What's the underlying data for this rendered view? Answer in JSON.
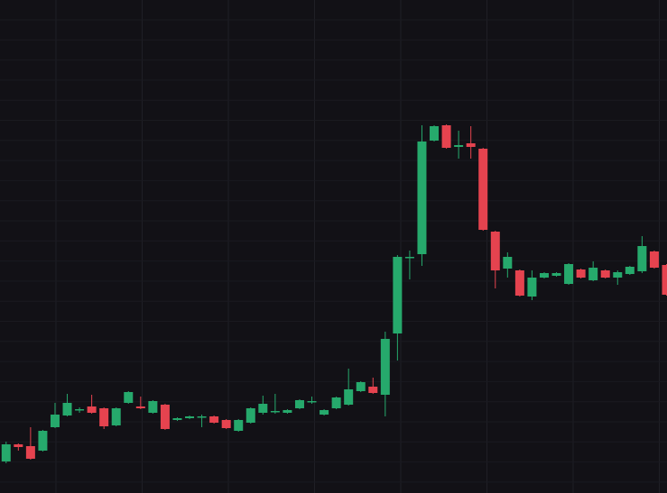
{
  "chart_data": {
    "type": "candlestick",
    "categories": [
      null,
      null,
      null,
      null,
      null,
      null,
      null,
      null,
      null,
      null,
      null,
      null,
      null,
      null,
      null,
      null,
      null,
      null,
      null,
      null,
      null,
      null,
      null,
      null,
      null,
      null,
      null,
      null,
      null,
      null,
      null,
      null,
      null,
      null,
      null,
      null,
      null,
      null,
      null,
      null,
      null,
      null,
      null,
      null,
      null,
      null,
      null,
      null,
      null,
      null,
      null,
      null,
      null,
      null,
      null
    ],
    "open": [
      35,
      54,
      52,
      47,
      73,
      86,
      92,
      96,
      94,
      75,
      100,
      96,
      89,
      98,
      81,
      83,
      84,
      85,
      81,
      69,
      78,
      89,
      90,
      89,
      94,
      101,
      87,
      94,
      98,
      113,
      118,
      109,
      177,
      261,
      265,
      391,
      408,
      384,
      388,
      382,
      290,
      249,
      247,
      218,
      239,
      241,
      232,
      248,
      236,
      247,
      239,
      243,
      246,
      268,
      253
    ],
    "high": [
      57,
      55,
      73,
      70,
      100,
      110,
      95,
      109,
      95,
      95,
      113,
      107,
      103,
      99,
      84,
      86,
      87,
      86,
      82,
      82,
      95,
      108,
      110,
      93,
      104,
      107,
      93,
      107,
      138,
      124,
      128,
      179,
      264,
      269,
      408,
      408,
      409,
      402,
      407,
      383,
      291,
      267,
      248,
      247,
      245,
      245,
      255,
      249,
      257,
      248,
      247,
      252,
      285,
      269,
      254
    ],
    "low": [
      33,
      47,
      37,
      46,
      72,
      85,
      89,
      88,
      71,
      74,
      99,
      93,
      88,
      70,
      80,
      82,
      73,
      77,
      71,
      68,
      77,
      87,
      88,
      88,
      93,
      99,
      86,
      93,
      97,
      112,
      110,
      85,
      147,
      237,
      252,
      390,
      382,
      371,
      371,
      291,
      227,
      239,
      218,
      214,
      238,
      240,
      231,
      238,
      235,
      238,
      231,
      242,
      244,
      249,
      219
    ],
    "close": [
      54,
      51,
      38,
      69,
      87,
      100,
      93,
      89,
      74,
      94,
      112,
      94,
      102,
      71,
      83,
      85,
      85,
      78,
      72,
      81,
      94,
      99,
      91,
      92,
      103,
      102,
      92,
      106,
      115,
      123,
      111,
      171,
      262,
      262,
      390,
      407,
      383,
      386,
      384,
      292,
      247,
      262,
      219,
      239,
      244,
      244,
      254,
      239,
      250,
      239,
      245,
      251,
      274,
      250,
      220
    ],
    "up_color": "#26a96c",
    "down_color": "#e5434f",
    "ylim": [
      0,
      547
    ],
    "grid": true
  }
}
